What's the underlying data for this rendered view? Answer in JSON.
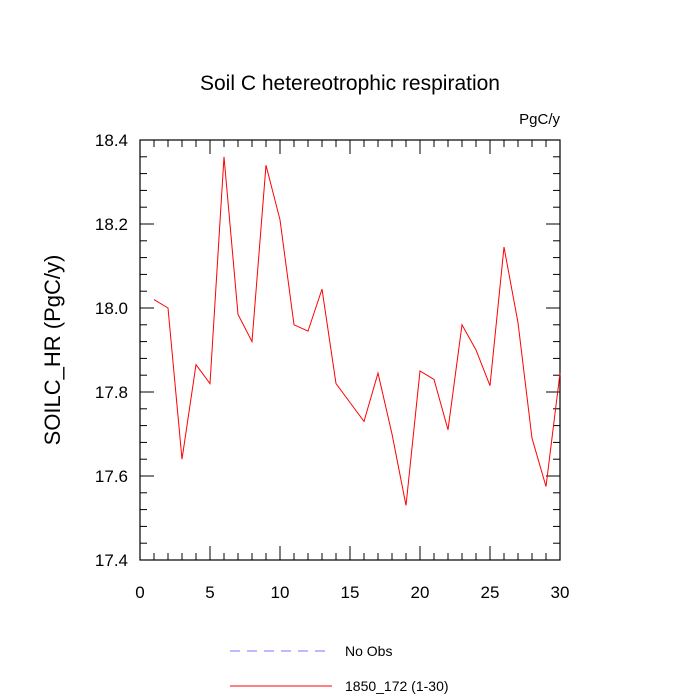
{
  "chart_data": {
    "type": "line",
    "title": "Soil C hetereotrophic respiration",
    "units": "PgC/y",
    "ylabel": "SOILC_HR  (PgC/y)",
    "xlabel": "",
    "xlim": [
      0,
      30
    ],
    "ylim": [
      17.4,
      18.4
    ],
    "xticks": [
      0,
      5,
      10,
      15,
      20,
      25,
      30
    ],
    "xtick_labels": [
      "0",
      "5",
      "10",
      "15",
      "20",
      "25",
      "30"
    ],
    "yticks": [
      17.4,
      17.6,
      17.8,
      18.0,
      18.2,
      18.4
    ],
    "ytick_labels": [
      "17.4",
      "17.6",
      "17.8",
      "18.0",
      "18.2",
      "18.4"
    ],
    "grid": false,
    "legend_position": "bottom-center",
    "series": [
      {
        "name": "No Obs",
        "color": "#7777ff",
        "dash": "dashed",
        "x": [],
        "values": []
      },
      {
        "name": "1850_172 (1-30)",
        "color": "#ff0000",
        "dash": "solid",
        "x": [
          1,
          2,
          3,
          4,
          5,
          6,
          7,
          8,
          9,
          10,
          11,
          12,
          13,
          14,
          15,
          16,
          17,
          18,
          19,
          20,
          21,
          22,
          23,
          24,
          25,
          26,
          27,
          28,
          29,
          30
        ],
        "values": [
          18.02,
          18.0,
          17.64,
          17.865,
          17.82,
          18.36,
          17.985,
          17.92,
          18.34,
          18.21,
          17.96,
          17.945,
          18.045,
          17.82,
          17.775,
          17.73,
          17.845,
          17.7,
          17.53,
          17.85,
          17.83,
          17.71,
          17.96,
          17.9,
          17.815,
          18.145,
          17.965,
          17.69,
          17.575,
          17.845
        ]
      }
    ]
  }
}
